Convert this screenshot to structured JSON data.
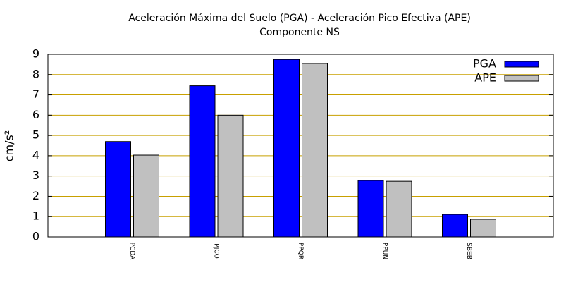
{
  "chart_data": {
    "type": "bar",
    "title": "Aceleración Máxima del Suelo (PGA) -  Aceleración Pico Efectiva (APE)",
    "subtitle": "Componente NS",
    "y_label": "cm/s²",
    "categories": [
      "PCDA",
      "PJCO",
      "PPQR",
      "PPUN",
      "SBEB"
    ],
    "series": [
      {
        "name": "PGA",
        "color": "#0000ff",
        "values": [
          4.7,
          7.45,
          8.75,
          2.78,
          1.11
        ]
      },
      {
        "name": "APE",
        "color": "#c0c0c0",
        "values": [
          4.03,
          6.0,
          8.55,
          2.74,
          0.87
        ]
      }
    ],
    "ylim": [
      0,
      9
    ],
    "yticks": [
      0,
      1,
      2,
      3,
      4,
      5,
      6,
      7,
      8,
      9
    ],
    "grid": true,
    "grid_color": "#c8a000",
    "legend": "top-right"
  }
}
